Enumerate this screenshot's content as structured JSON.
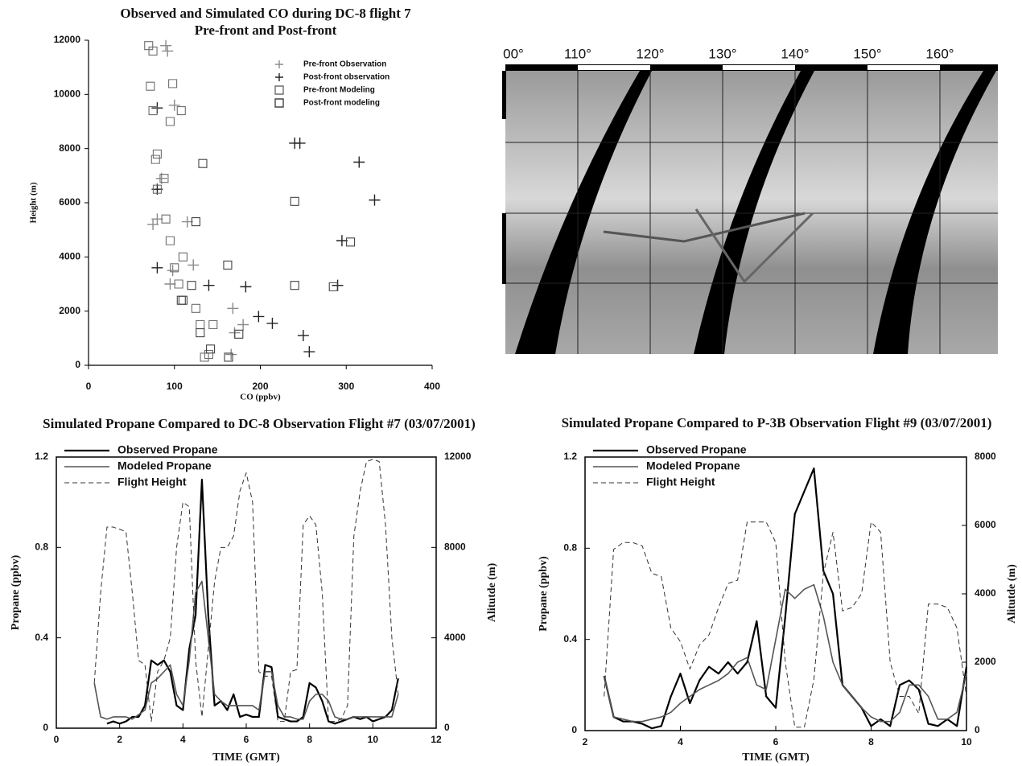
{
  "chart_data": [
    {
      "type": "scatter",
      "title": "Observed and Simulated CO during DC-8 flight 7",
      "subtitle": "Pre-front and Post-front",
      "x_label": "CO (ppbv)",
      "y_label": "Height (m)",
      "xlim": [
        0,
        400
      ],
      "ylim": [
        0,
        12000
      ],
      "xticks": [
        0,
        100,
        200,
        300,
        400
      ],
      "yticks": [
        0,
        2000,
        4000,
        6000,
        8000,
        10000,
        12000
      ],
      "legend": "upper right",
      "series": [
        {
          "name": "Pre-front Observation",
          "color": "#8a8a8a",
          "marker": "plus",
          "x": [
            90,
            92,
            100,
            85,
            80,
            115,
            122,
            95,
            168,
            180,
            166,
            170,
            75,
            98
          ],
          "values": [
            11800,
            11600,
            9600,
            6900,
            5400,
            5300,
            3700,
            3000,
            2100,
            1500,
            400,
            1200,
            5200,
            3500
          ]
        },
        {
          "name": "Post-front observation",
          "color": "#222222",
          "marker": "plus",
          "x": [
            80,
            240,
            246,
            315,
            333,
            295,
            140,
            183,
            290,
            250,
            257,
            198,
            214,
            80,
            80
          ],
          "values": [
            9500,
            8200,
            8200,
            7500,
            6100,
            4600,
            2950,
            2900,
            2950,
            1100,
            500,
            1800,
            1550,
            3600,
            6500
          ]
        },
        {
          "name": "Pre-front Modeling",
          "color": "#6e6e6e",
          "marker": "square",
          "x": [
            70,
            75,
            72,
            98,
            75,
            108,
            95,
            80,
            78,
            88,
            80,
            90,
            95,
            110,
            100,
            105,
            125,
            130,
            145,
            140,
            135
          ],
          "values": [
            11800,
            11600,
            10300,
            10400,
            9400,
            9400,
            9000,
            7800,
            7600,
            6900,
            6500,
            5400,
            4600,
            4000,
            3600,
            3000,
            2100,
            1500,
            1500,
            400,
            300
          ]
        },
        {
          "name": "Post-front modeling",
          "color": "#444444",
          "marker": "square",
          "x": [
            133,
            240,
            125,
            305,
            162,
            240,
            285,
            120,
            108,
            110,
            175,
            130,
            163,
            142
          ],
          "values": [
            7450,
            6050,
            5300,
            4550,
            3700,
            2950,
            2900,
            2950,
            2400,
            2400,
            1150,
            1200,
            300,
            600
          ]
        }
      ]
    },
    {
      "type": "line",
      "title": "Simulated Propane Compared to DC-8 Observation Flight #7 (03/07/2001)",
      "x_label": "TIME (GMT)",
      "y_label": "Propane  (ppbv)",
      "y2_label": "Alitutde (m)",
      "xlim": [
        0,
        12
      ],
      "ylim": [
        0,
        1.2
      ],
      "y2lim": [
        0,
        12000
      ],
      "xticks": [
        0,
        2,
        4,
        6,
        8,
        10,
        12
      ],
      "yticks": [
        0,
        0.4,
        0.8,
        1.2
      ],
      "y2ticks": [
        0,
        4000,
        8000,
        12000
      ],
      "legend": "upper left",
      "x": [
        1.2,
        1.4,
        1.6,
        1.8,
        2.0,
        2.2,
        2.4,
        2.6,
        2.8,
        3.0,
        3.2,
        3.4,
        3.6,
        3.8,
        4.0,
        4.2,
        4.4,
        4.6,
        4.8,
        5.0,
        5.2,
        5.4,
        5.6,
        5.8,
        6.0,
        6.2,
        6.4,
        6.6,
        6.8,
        7.0,
        7.2,
        7.4,
        7.6,
        7.8,
        8.0,
        8.2,
        8.4,
        8.6,
        8.8,
        9.0,
        9.2,
        9.4,
        9.6,
        9.8,
        10.0,
        10.2,
        10.4,
        10.6,
        10.8
      ],
      "series": [
        {
          "name": "Observed Propane",
          "color": "#000000",
          "width": 2.2,
          "values": [
            null,
            null,
            0.02,
            0.03,
            0.02,
            0.03,
            0.05,
            0.05,
            0.1,
            0.3,
            0.28,
            0.3,
            0.25,
            0.1,
            0.08,
            0.35,
            0.5,
            1.1,
            0.5,
            0.1,
            0.12,
            0.08,
            0.15,
            0.05,
            0.06,
            0.05,
            0.05,
            0.28,
            0.27,
            0.05,
            0.04,
            0.03,
            0.03,
            0.05,
            0.2,
            0.18,
            0.12,
            0.03,
            0.02,
            0.03,
            0.04,
            0.05,
            0.04,
            0.05,
            0.03,
            0.04,
            0.05,
            0.08,
            0.22
          ]
        },
        {
          "name": "Modeled Propane",
          "color": "#555555",
          "width": 1.6,
          "values": [
            0.2,
            0.05,
            0.04,
            0.05,
            0.05,
            0.05,
            0.04,
            0.06,
            0.08,
            0.2,
            0.22,
            0.25,
            0.28,
            0.15,
            0.1,
            0.3,
            0.6,
            0.65,
            0.4,
            0.15,
            0.12,
            0.1,
            0.1,
            0.1,
            0.1,
            0.1,
            0.08,
            0.25,
            0.25,
            0.1,
            0.05,
            0.05,
            0.04,
            0.04,
            0.12,
            0.15,
            0.15,
            0.12,
            0.05,
            0.04,
            0.04,
            0.05,
            0.05,
            0.05,
            0.05,
            0.05,
            0.05,
            0.05,
            0.15
          ]
        },
        {
          "name": "Flight Height",
          "color": "#333333",
          "width": 1,
          "dash": true,
          "axis": "y2",
          "values": [
            2000,
            6000,
            8900,
            8900,
            8800,
            8700,
            6000,
            3000,
            2800,
            300,
            2500,
            3000,
            4000,
            8000,
            10000,
            9800,
            3000,
            500,
            3500,
            6500,
            8000,
            8000,
            8500,
            10500,
            11300,
            10000,
            2500,
            2300,
            2300,
            300,
            300,
            2500,
            2600,
            9000,
            9400,
            9000,
            6000,
            300,
            300,
            400,
            1000,
            8500,
            10500,
            11800,
            11900,
            11800,
            9000,
            4000,
            1500
          ]
        }
      ]
    },
    {
      "type": "line",
      "title": "Simulated Propane Compared to P-3B Observation Flight #9 (03/07/2001)",
      "x_label": "TIME (GMT)",
      "y_label": "Propane  (ppbv)",
      "y2_label": "Alitutde (m)",
      "xlim": [
        2,
        10
      ],
      "ylim": [
        0,
        1.2
      ],
      "y2lim": [
        0,
        8000
      ],
      "xticks": [
        2,
        4,
        6,
        8,
        10
      ],
      "yticks": [
        0,
        0.4,
        0.8,
        1.2
      ],
      "y2ticks": [
        0,
        2000,
        4000,
        6000,
        8000
      ],
      "legend": "upper left",
      "x": [
        2.4,
        2.6,
        2.8,
        3.0,
        3.2,
        3.4,
        3.6,
        3.8,
        4.0,
        4.2,
        4.4,
        4.6,
        4.8,
        5.0,
        5.2,
        5.4,
        5.6,
        5.8,
        6.0,
        6.2,
        6.4,
        6.6,
        6.8,
        7.0,
        7.2,
        7.4,
        7.6,
        7.8,
        8.0,
        8.2,
        8.4,
        8.6,
        8.8,
        9.0,
        9.2,
        9.4,
        9.6,
        9.8,
        10.0
      ],
      "series": [
        {
          "name": "Observed Propane",
          "color": "#000000",
          "width": 2.2,
          "values": [
            0.24,
            0.06,
            0.04,
            0.04,
            0.03,
            0.01,
            0.02,
            0.15,
            0.25,
            0.12,
            0.22,
            0.28,
            0.25,
            0.3,
            0.25,
            0.3,
            0.48,
            0.15,
            0.1,
            0.5,
            0.95,
            1.05,
            1.15,
            0.7,
            0.6,
            0.2,
            0.15,
            0.1,
            0.02,
            0.05,
            0.02,
            0.2,
            0.22,
            0.18,
            0.03,
            0.02,
            0.05,
            0.02,
            0.28
          ]
        },
        {
          "name": "Modeled Propane",
          "color": "#555555",
          "width": 1.6,
          "values": [
            0.24,
            0.06,
            0.05,
            0.04,
            0.04,
            0.05,
            0.06,
            0.08,
            0.12,
            0.15,
            0.18,
            0.2,
            0.22,
            0.25,
            0.3,
            0.32,
            0.2,
            0.18,
            0.4,
            0.62,
            0.58,
            0.62,
            0.64,
            0.5,
            0.3,
            0.2,
            0.15,
            0.1,
            0.06,
            0.04,
            0.04,
            0.08,
            0.2,
            0.2,
            0.15,
            0.05,
            0.05,
            0.08,
            0.25
          ]
        },
        {
          "name": "Flight Height",
          "color": "#333333",
          "width": 1,
          "dash": true,
          "axis": "y2",
          "values": [
            1000,
            5300,
            5500,
            5500,
            5400,
            4600,
            4500,
            3000,
            2600,
            1800,
            2500,
            2800,
            3600,
            4300,
            4400,
            6100,
            6100,
            6100,
            5500,
            2000,
            100,
            100,
            1500,
            4600,
            5800,
            3500,
            3600,
            4000,
            6100,
            5800,
            2000,
            1000,
            1000,
            500,
            3700,
            3700,
            3600,
            3000,
            1000
          ]
        }
      ]
    }
  ],
  "map": {
    "lon_labels": [
      "00°",
      "110°",
      "120°",
      "130°",
      "140°",
      "150°",
      "160°"
    ]
  }
}
